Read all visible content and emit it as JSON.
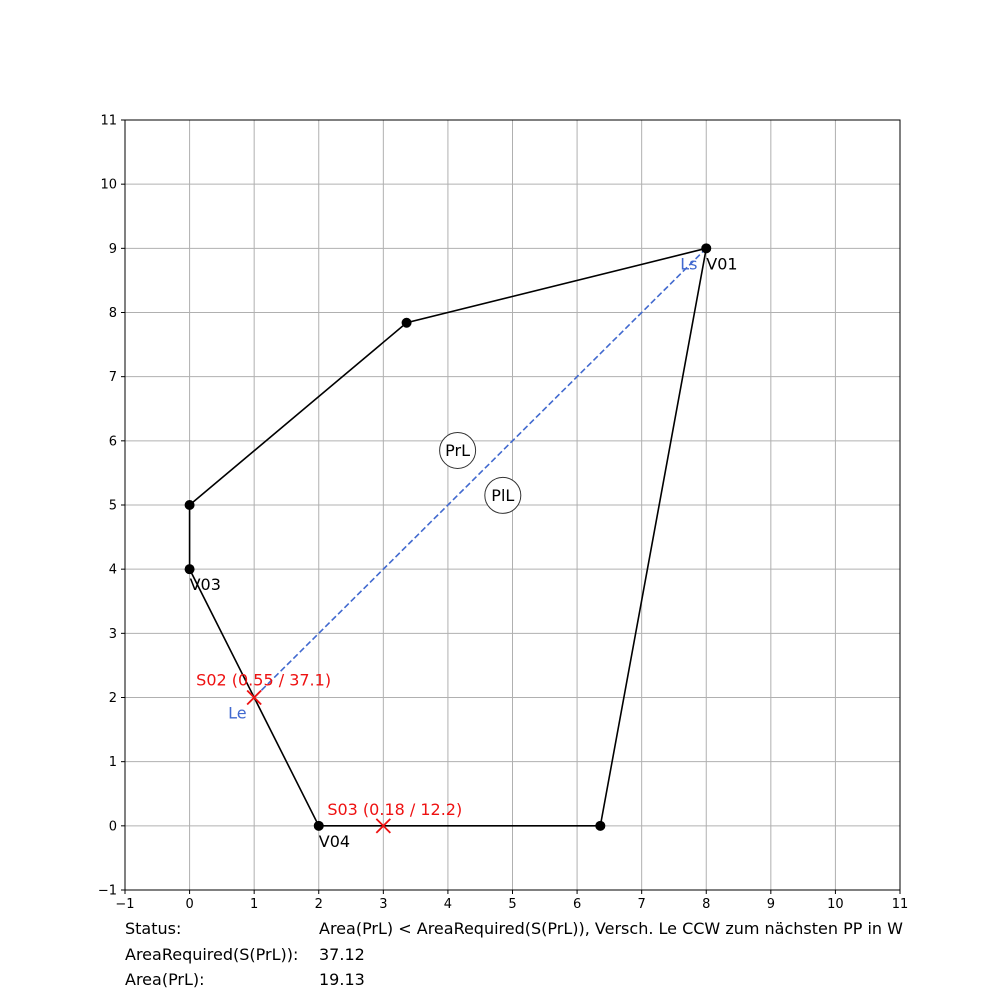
{
  "chart_data": {
    "type": "scatter",
    "title": "",
    "xlabel": "",
    "ylabel": "",
    "xlim": [
      -1,
      11
    ],
    "ylim": [
      -1,
      11
    ],
    "xticks": [
      "−1",
      "0",
      "1",
      "2",
      "3",
      "4",
      "5",
      "6",
      "7",
      "8",
      "9",
      "10",
      "11"
    ],
    "yticks": [
      "−1",
      "0",
      "1",
      "2",
      "3",
      "4",
      "5",
      "6",
      "7",
      "8",
      "9",
      "10",
      "11"
    ],
    "grid": true,
    "polygon": {
      "vertices": [
        {
          "x": 8,
          "y": 9,
          "label": "V01"
        },
        {
          "x": 3.36,
          "y": 7.84,
          "label": ""
        },
        {
          "x": 0,
          "y": 5,
          "label": ""
        },
        {
          "x": 0,
          "y": 4,
          "label": "V03"
        },
        {
          "x": 2,
          "y": 0,
          "label": "V04"
        },
        {
          "x": 6.36,
          "y": 0,
          "label": ""
        }
      ],
      "color": "#000000"
    },
    "split_line": {
      "from": {
        "x": 8,
        "y": 9
      },
      "to": {
        "x": 1,
        "y": 2
      },
      "start_label": "Ls",
      "end_label": "Le",
      "color": "#4169cf"
    },
    "split_points": [
      {
        "x": 1,
        "y": 2,
        "label": "S02 (0.55 / 37.1)"
      },
      {
        "x": 3,
        "y": 0,
        "label": "S03 (0.18 / 12.2)"
      }
    ],
    "split_point_color": "#ee1111",
    "regions": [
      {
        "label": "PrL",
        "x": 4.15,
        "y": 5.85
      },
      {
        "label": "PlL",
        "x": 4.85,
        "y": 5.15
      }
    ]
  },
  "status_panel": {
    "status_key": "Status:",
    "status_value": "Area(PrL) < AreaRequired(S(PrL)), Versch. Le CCW zum nächsten PP in W",
    "area_required_key": "AreaRequired(S(PrL)):",
    "area_required_value": "37.12",
    "area_key": "Area(PrL):",
    "area_value": "19.13"
  }
}
